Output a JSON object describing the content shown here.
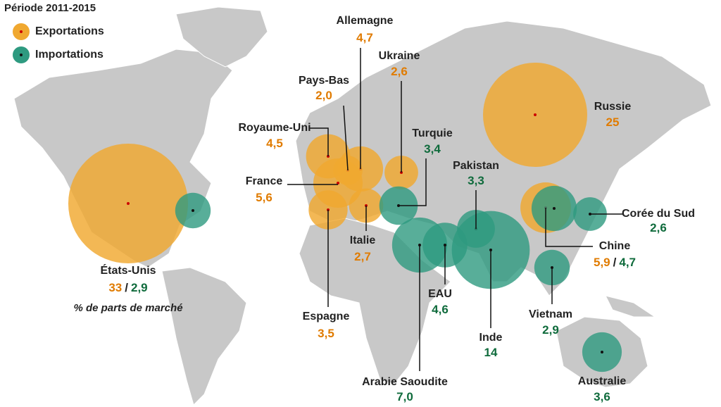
{
  "title": "Période 2011-2015",
  "legend": {
    "exports": "Exportations",
    "imports": "Importations"
  },
  "note": "% de parts de marché",
  "separator": "/",
  "countries": [
    {
      "name": "États-Unis",
      "exports": {
        "value": 33,
        "label": "33"
      },
      "imports": {
        "value": 2.9,
        "label": "2,9"
      }
    },
    {
      "name": "Allemagne",
      "exports": {
        "value": 4.7,
        "label": "4,7"
      }
    },
    {
      "name": "Ukraine",
      "exports": {
        "value": 2.6,
        "label": "2,6"
      }
    },
    {
      "name": "Pays-Bas",
      "exports": {
        "value": 2.0,
        "label": "2,0"
      }
    },
    {
      "name": "Royaume-Uni",
      "exports": {
        "value": 4.5,
        "label": "4,5"
      }
    },
    {
      "name": "France",
      "exports": {
        "value": 5.6,
        "label": "5,6"
      }
    },
    {
      "name": "Italie",
      "exports": {
        "value": 2.7,
        "label": "2,7"
      }
    },
    {
      "name": "Espagne",
      "exports": {
        "value": 3.5,
        "label": "3,5"
      }
    },
    {
      "name": "Turquie",
      "imports": {
        "value": 3.4,
        "label": "3,4"
      }
    },
    {
      "name": "Pakistan",
      "imports": {
        "value": 3.3,
        "label": "3,3"
      }
    },
    {
      "name": "Russie",
      "exports": {
        "value": 25,
        "label": "25"
      }
    },
    {
      "name": "Corée du Sud",
      "imports": {
        "value": 2.6,
        "label": "2,6"
      }
    },
    {
      "name": "Chine",
      "exports": {
        "value": 5.9,
        "label": "5,9"
      },
      "imports": {
        "value": 4.7,
        "label": "4,7"
      }
    },
    {
      "name": "Arabie Saoudite",
      "imports": {
        "value": 7.0,
        "label": "7,0"
      }
    },
    {
      "name": "EAU",
      "imports": {
        "value": 4.6,
        "label": "4,6"
      }
    },
    {
      "name": "Inde",
      "imports": {
        "value": 14,
        "label": "14"
      }
    },
    {
      "name": "Vietnam",
      "imports": {
        "value": 2.9,
        "label": "2,9"
      }
    },
    {
      "name": "Australie",
      "imports": {
        "value": 3.6,
        "label": "3,6"
      }
    }
  ]
}
